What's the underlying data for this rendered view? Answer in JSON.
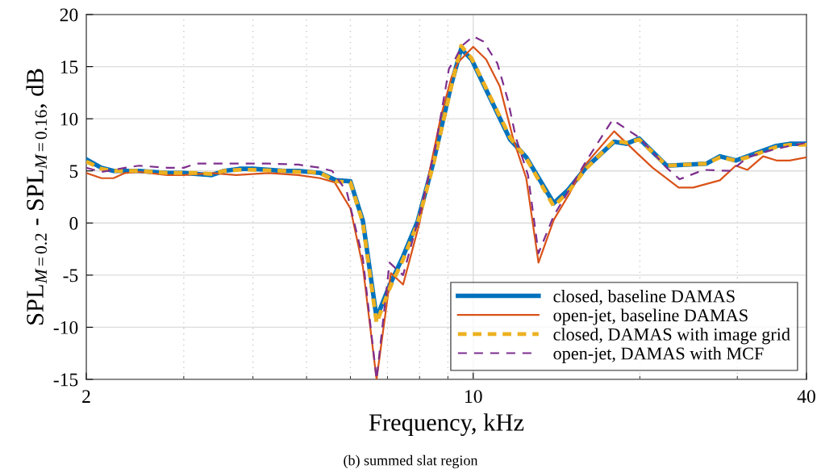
{
  "chart_data": {
    "type": "line",
    "xlabel": "Frequency, kHz",
    "ylabel": "SPL$_{M=0.2}$ - SPL$_{M=0.16}$, dB",
    "log": "x",
    "xlim": [
      2,
      40
    ],
    "xticks": [
      2,
      10,
      40
    ],
    "ylim": [
      -15,
      20
    ],
    "yticks": [
      -15,
      -10,
      -5,
      0,
      5,
      10,
      15,
      20
    ],
    "grid": true,
    "legend": "bottom right",
    "annotations": [
      "(b) summed slat region"
    ],
    "series": [
      {
        "name": "closed, baseline DAMAS",
        "color": "#0072bd",
        "line_style": "solid",
        "x": [
          2.0,
          2.13,
          2.24,
          2.35,
          2.49,
          2.64,
          2.8,
          3.0,
          3.16,
          3.37,
          3.55,
          3.78,
          4.0,
          4.56,
          4.83,
          5.05,
          5.29,
          5.65,
          6.0,
          6.32,
          6.69,
          7.06,
          7.47,
          7.94,
          8.46,
          9.14,
          9.51,
          9.93,
          11.66,
          12.47,
          13.98,
          14.85,
          15.98,
          17.97,
          18.9,
          19.95,
          22.36,
          26.4,
          27.9,
          29.8,
          31.3,
          35.3,
          37.3,
          40.0
        ],
        "values": [
          6.1,
          5.3,
          5.0,
          5.0,
          5.0,
          4.9,
          4.8,
          4.8,
          4.7,
          4.6,
          5.0,
          5.2,
          5.2,
          5.0,
          5.0,
          4.9,
          4.8,
          4.1,
          4.0,
          0.2,
          -9.1,
          -6.0,
          -3.2,
          0.2,
          5.7,
          13.4,
          16.7,
          15.7,
          8.0,
          6.3,
          1.9,
          3.2,
          5.3,
          7.8,
          7.6,
          8.1,
          5.5,
          5.7,
          6.4,
          6.0,
          6.4,
          7.4,
          7.6,
          7.6
        ]
      },
      {
        "name": "open-jet, baseline DAMAS",
        "color": "#d95319",
        "line_style": "solid",
        "x": [
          2.0,
          2.13,
          2.24,
          2.35,
          2.49,
          2.8,
          3.0,
          3.37,
          3.73,
          4.27,
          4.83,
          5.29,
          5.62,
          6.0,
          6.32,
          6.69,
          7.1,
          7.47,
          7.99,
          8.35,
          8.75,
          9.14,
          9.38,
          10.0,
          10.55,
          11.17,
          11.82,
          12.47,
          13.12,
          13.98,
          14.95,
          15.88,
          17.97,
          19.95,
          21.1,
          23.5,
          24.97,
          27.9,
          29.8,
          31.3,
          33.4,
          35.3,
          37.3,
          40.0
        ],
        "values": [
          4.8,
          4.3,
          4.3,
          4.8,
          4.9,
          4.6,
          4.6,
          4.8,
          4.6,
          4.8,
          4.6,
          4.3,
          3.9,
          1.4,
          -4.2,
          -15,
          -4.8,
          -5.9,
          -0.1,
          5.1,
          10.3,
          14.0,
          15.4,
          16.9,
          15.7,
          13.1,
          8.0,
          4.3,
          -3.8,
          0.3,
          2.9,
          5.5,
          8.8,
          6.5,
          5.3,
          3.4,
          3.4,
          4.1,
          5.5,
          5.1,
          6.4,
          6.0,
          6.0,
          6.3
        ]
      },
      {
        "name": "closed, DAMAS with image grid",
        "color": "#edb120",
        "line_style": "dashed",
        "x": [
          2.0,
          2.13,
          2.24,
          2.35,
          2.49,
          2.64,
          2.8,
          3.0,
          3.16,
          3.37,
          3.55,
          3.78,
          4.0,
          4.56,
          4.83,
          5.05,
          5.29,
          5.65,
          6.0,
          6.32,
          6.69,
          7.06,
          7.47,
          7.94,
          8.46,
          9.14,
          9.51,
          9.93,
          11.66,
          12.47,
          13.98,
          14.85,
          15.98,
          17.97,
          18.9,
          19.95,
          22.36,
          26.4,
          27.9,
          29.8,
          31.3,
          35.3,
          37.3,
          40.0
        ],
        "values": [
          5.9,
          5.2,
          5.0,
          5.0,
          5.0,
          4.9,
          4.8,
          4.8,
          4.8,
          4.7,
          5.0,
          5.1,
          5.1,
          5.0,
          4.9,
          4.9,
          4.8,
          4.0,
          3.9,
          0.0,
          -9.6,
          -6.3,
          -3.5,
          0.0,
          5.5,
          13.2,
          17.0,
          15.8,
          8.2,
          6.2,
          1.6,
          3.0,
          5.2,
          7.9,
          7.7,
          8.0,
          5.5,
          5.7,
          6.3,
          6.0,
          6.3,
          7.3,
          7.5,
          7.5
        ]
      },
      {
        "name": "open-jet, DAMAS with MCF",
        "color": "#7e2f8e",
        "line_style": "dashed",
        "x": [
          2.0,
          2.13,
          2.24,
          2.35,
          2.49,
          2.8,
          3.0,
          3.16,
          3.78,
          4.27,
          4.83,
          5.29,
          5.56,
          5.91,
          6.32,
          6.69,
          7.06,
          7.47,
          7.99,
          8.54,
          9.04,
          9.29,
          9.54,
          10.0,
          10.44,
          11.06,
          11.55,
          11.94,
          12.56,
          13.12,
          13.98,
          14.95,
          15.98,
          17.85,
          19.95,
          22.36,
          23.6,
          26.1,
          29.2,
          31.3,
          34.6,
          37.3,
          40.0
        ],
        "values": [
          5.3,
          4.9,
          5.1,
          5.3,
          5.5,
          5.3,
          5.3,
          5.7,
          5.7,
          5.7,
          5.6,
          5.3,
          5.0,
          3.0,
          -3.4,
          -15,
          -3.8,
          -5.0,
          0.7,
          7.2,
          14.8,
          15.8,
          17.0,
          17.9,
          17.4,
          15.3,
          11.8,
          8.2,
          4.6,
          -2.9,
          0.7,
          3.3,
          5.9,
          9.9,
          8.2,
          5.3,
          4.2,
          5.1,
          5.0,
          6.3,
          7.0,
          7.4,
          7.7
        ]
      }
    ]
  }
}
